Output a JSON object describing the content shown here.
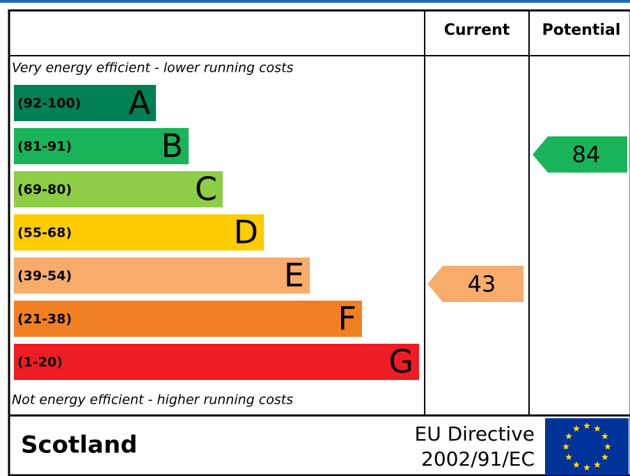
{
  "header": {
    "current": "Current",
    "potential": "Potential"
  },
  "top_note": "Very energy efficient - lower running costs",
  "bottom_note": "Not energy efficient - higher running costs",
  "bands": [
    {
      "range": "(92-100)",
      "letter": "A",
      "color": "#008054"
    },
    {
      "range": "(81-91)",
      "letter": "B",
      "color": "#19b459"
    },
    {
      "range": "(69-80)",
      "letter": "C",
      "color": "#8dce46"
    },
    {
      "range": "(55-68)",
      "letter": "D",
      "color": "#ffcc00"
    },
    {
      "range": "(39-54)",
      "letter": "E",
      "color": "#f7ac6b"
    },
    {
      "range": "(21-38)",
      "letter": "F",
      "color": "#f08022"
    },
    {
      "range": "(1-20)",
      "letter": "G",
      "color": "#ee1c25"
    }
  ],
  "current": 43,
  "potential": 84,
  "footer": {
    "region": "Scotland",
    "directive_line1": "EU Directive",
    "directive_line2": "2002/91/EC"
  }
}
